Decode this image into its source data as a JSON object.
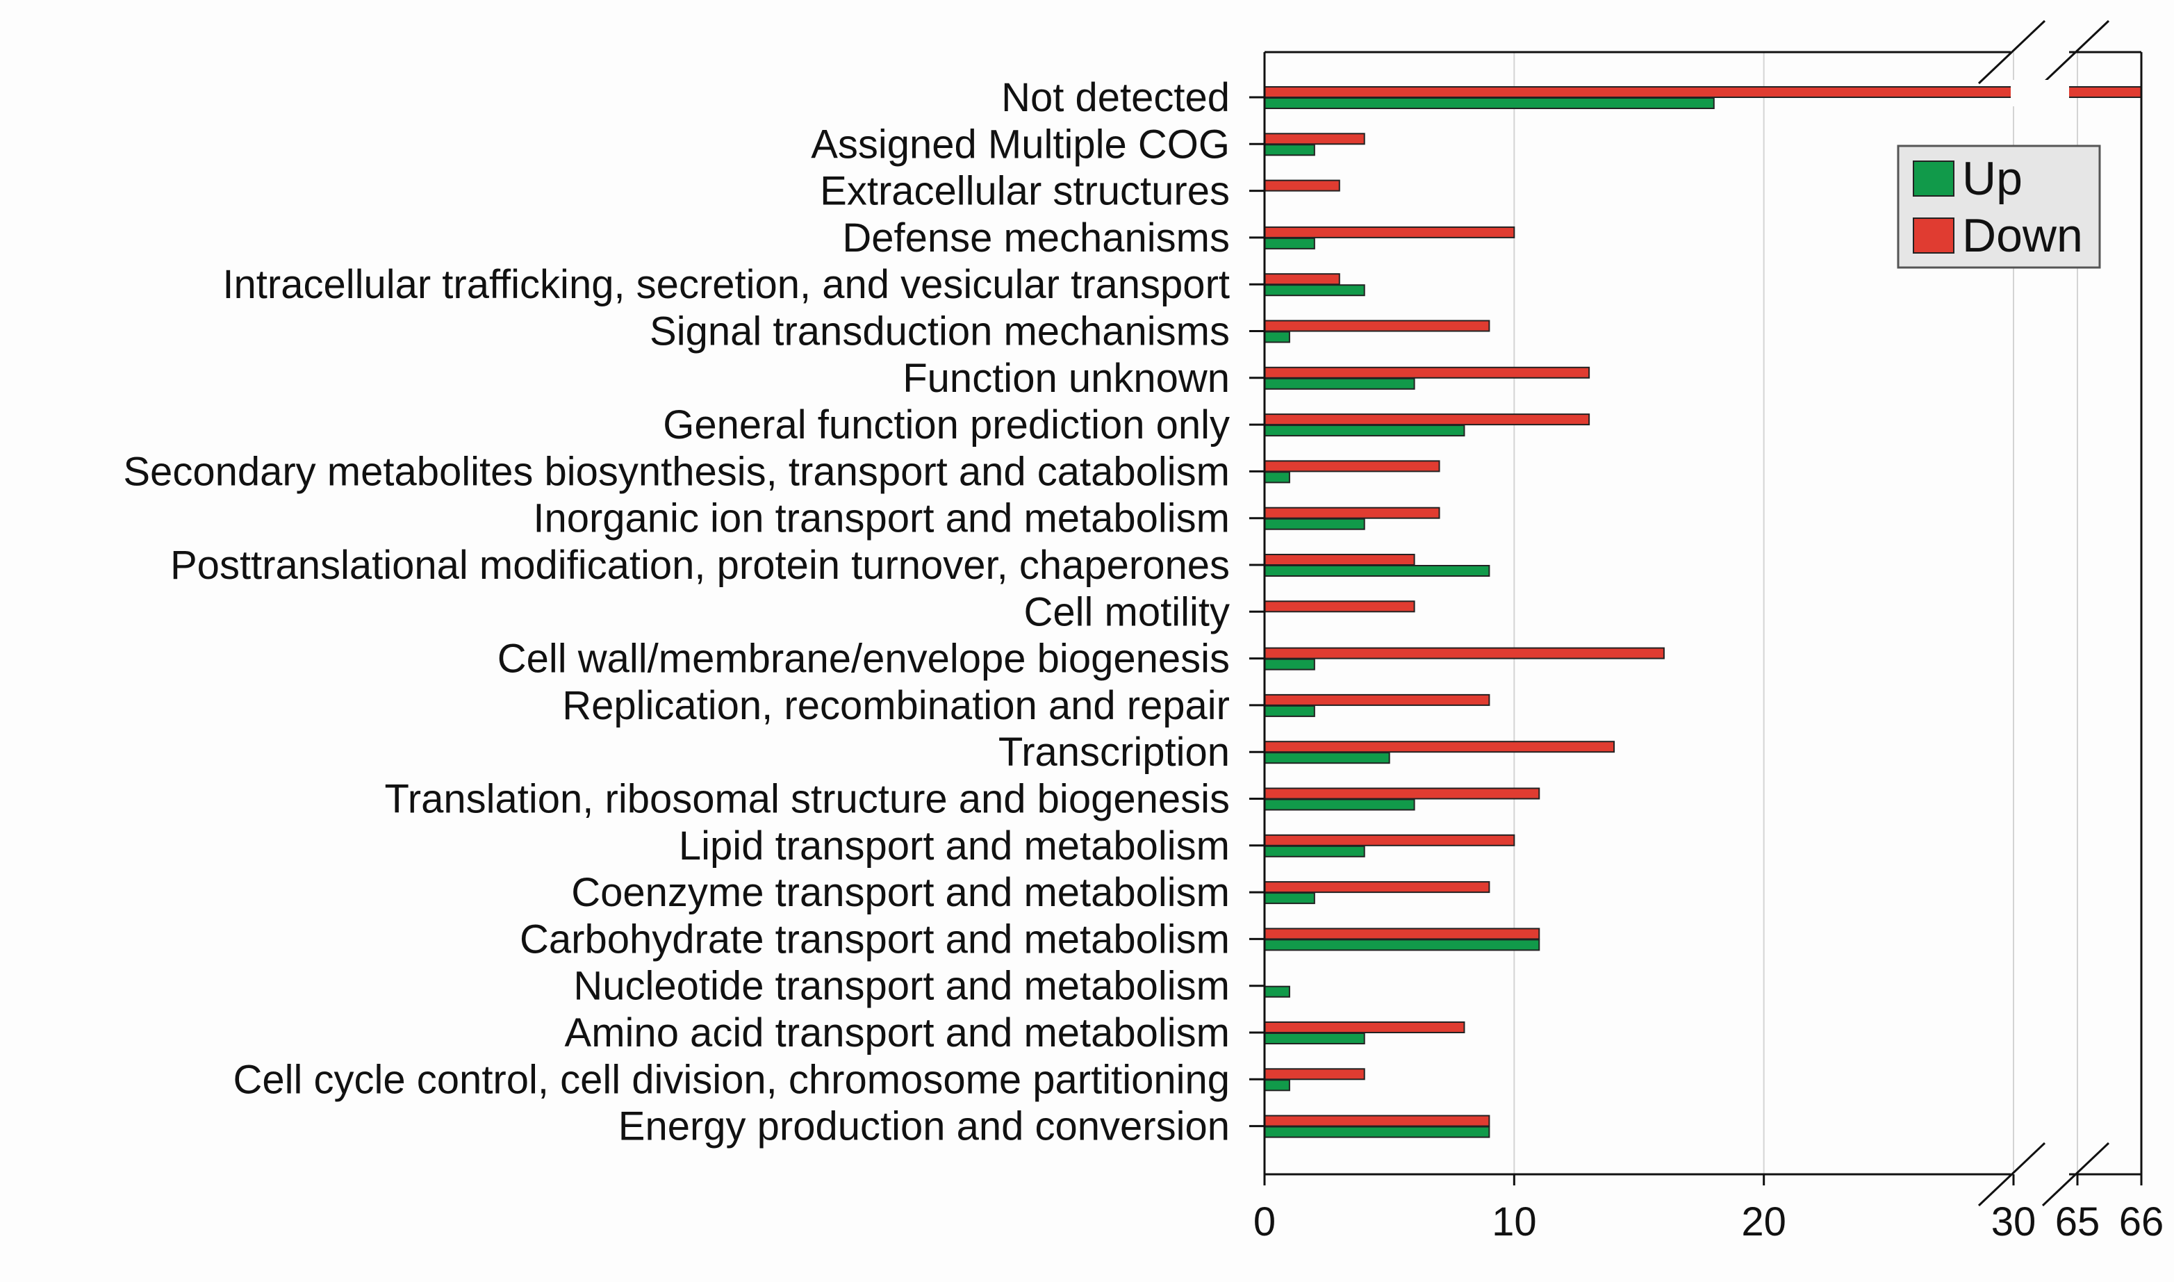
{
  "chart_data": {
    "type": "bar",
    "orientation": "horizontal",
    "categories": [
      "Not detected",
      "Assigned Multiple COG",
      "Extracellular structures",
      "Defense mechanisms",
      "Intracellular trafficking, secretion, and vesicular transport",
      "Signal transduction mechanisms",
      "Function unknown",
      "General function prediction only",
      "Secondary metabolites biosynthesis, transport and catabolism",
      "Inorganic ion transport and metabolism",
      "Posttranslational modification, protein turnover, chaperones",
      "Cell motility",
      "Cell wall/membrane/envelope biogenesis",
      "Replication, recombination and repair",
      "Transcription",
      "Translation, ribosomal structure and biogenesis",
      "Lipid transport and metabolism",
      "Coenzyme transport and metabolism",
      "Carbohydrate transport and metabolism",
      "Nucleotide transport and metabolism",
      "Amino acid transport and metabolism",
      "Cell cycle control, cell division, chromosome partitioning",
      "Energy production and conversion"
    ],
    "series": [
      {
        "name": "Down",
        "color": "#e03c31",
        "values": [
          66,
          4,
          3,
          10,
          3,
          9,
          13,
          13,
          7,
          7,
          6,
          6,
          16,
          9,
          14,
          11,
          10,
          9,
          11,
          0,
          8,
          4,
          9
        ]
      },
      {
        "name": "Up",
        "color": "#119a4a",
        "values": [
          18,
          2,
          0,
          2,
          4,
          1,
          6,
          8,
          1,
          4,
          9,
          0,
          2,
          2,
          5,
          6,
          4,
          2,
          11,
          1,
          4,
          1,
          9
        ]
      }
    ],
    "xaxis": {
      "segments": [
        [
          0,
          30
        ],
        [
          65,
          66
        ]
      ],
      "ticks": [
        "0",
        "10",
        "20",
        "30",
        "65",
        "66"
      ],
      "gridlines": [
        10,
        20,
        30,
        65
      ]
    },
    "legend": {
      "position": "top-right",
      "entries": [
        {
          "label": "Up",
          "color": "#119a4a"
        },
        {
          "label": "Down",
          "color": "#e03c31"
        }
      ]
    },
    "title": "",
    "xlabel": "",
    "ylabel": ""
  }
}
